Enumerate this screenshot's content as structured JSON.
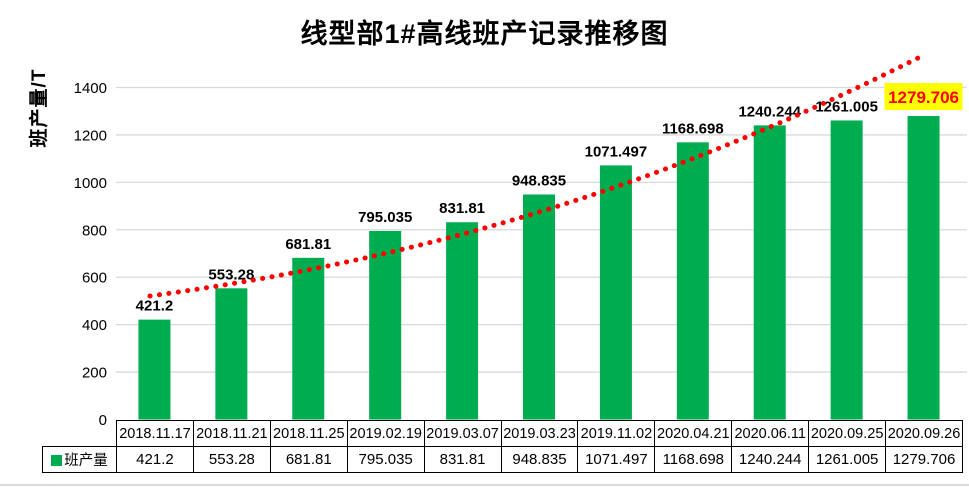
{
  "chart_data": {
    "type": "bar",
    "title": "线型部1#高线班产记录推移图",
    "ylabel": "班产量/T",
    "categories": [
      "2018.11.17",
      "2018.11.21",
      "2018.11.25",
      "2019.02.19",
      "2019.03.07",
      "2019.03.23",
      "2019.11.02",
      "2020.04.21",
      "2020.06.11",
      "2020.09.25",
      "2020.09.26"
    ],
    "series": [
      {
        "name": "班产量",
        "values": [
          421.2,
          553.28,
          681.81,
          795.035,
          831.81,
          948.835,
          1071.497,
          1168.698,
          1240.244,
          1261.005,
          1279.706
        ]
      }
    ],
    "ylim": [
      0,
      1400
    ],
    "ytick_step": 200,
    "grid": true,
    "legend": {
      "label": "班产量",
      "position": "table-left"
    },
    "trendline": {
      "type": "exponential",
      "style": "dotted"
    },
    "highlight_last_label": true,
    "colors": {
      "bar": "#00AC50",
      "gridline": "#d9d9d9",
      "trendline": "#ff0000",
      "highlight_bg": "#ffff00",
      "highlight_text": "#ff0000",
      "table_border": "#000000",
      "label_text": "#000000"
    }
  }
}
